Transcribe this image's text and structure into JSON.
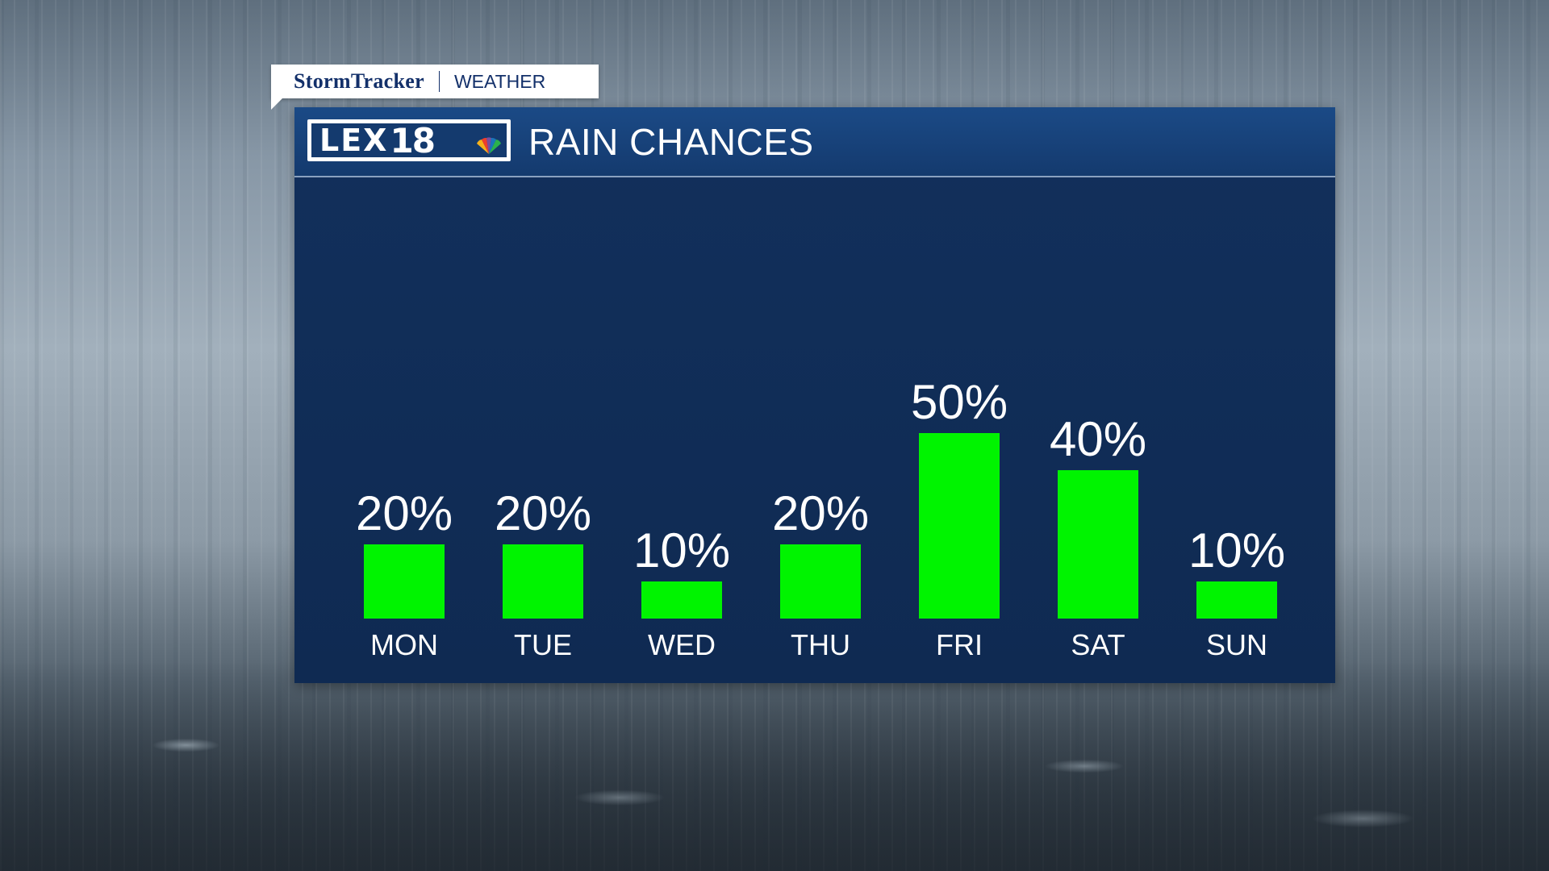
{
  "badge": {
    "brand": "StormTracker",
    "section": "WEATHER"
  },
  "logo": {
    "lex": "LEX",
    "num": "18"
  },
  "colors": {
    "panel": "#0f2a52",
    "header": "#1b4a86",
    "bar": "#00f400"
  },
  "chart_data": {
    "type": "bar",
    "title": "RAIN CHANCES",
    "categories": [
      "MON",
      "TUE",
      "WED",
      "THU",
      "FRI",
      "SAT",
      "SUN"
    ],
    "values": [
      20,
      20,
      10,
      20,
      50,
      40,
      10
    ],
    "data_labels": [
      "20%",
      "20%",
      "10%",
      "20%",
      "50%",
      "40%",
      "10%"
    ],
    "unit": "%",
    "ylim": [
      0,
      50
    ],
    "grid": false,
    "legend": "none"
  }
}
